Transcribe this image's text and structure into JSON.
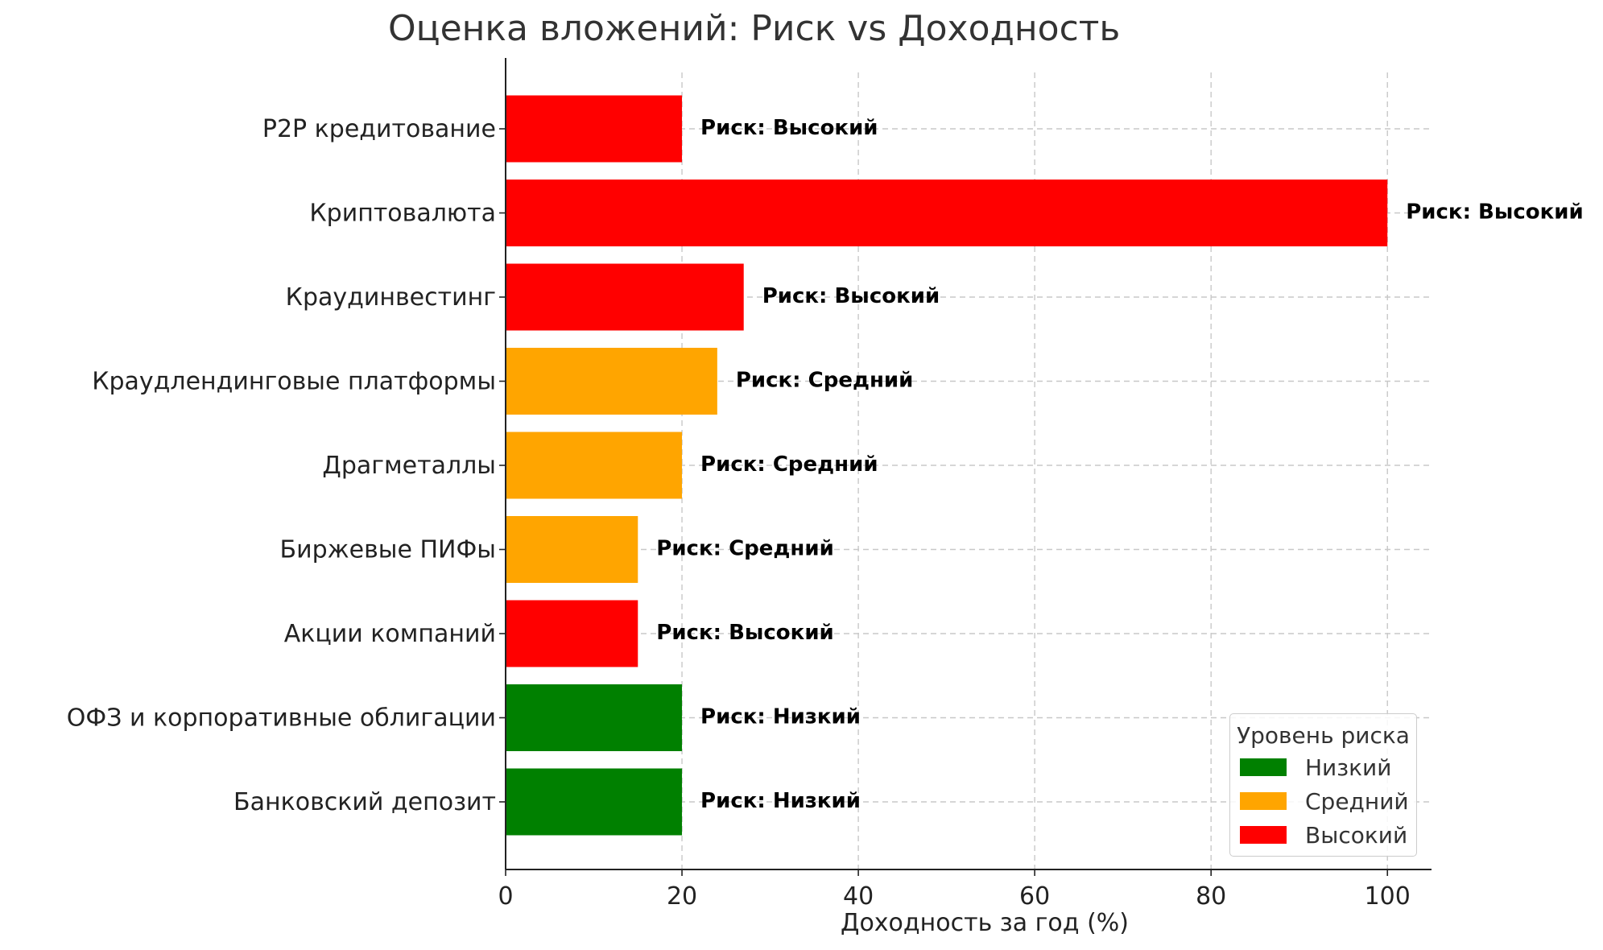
{
  "chart_data": {
    "type": "bar",
    "orientation": "horizontal",
    "title": "Оценка вложений: Риск vs Доходность",
    "xlabel": "Доходность за год (%)",
    "ylabel": "",
    "xlim": [
      0,
      105
    ],
    "xticks": [
      0,
      20,
      40,
      60,
      80,
      100
    ],
    "grid": true,
    "categories": [
      "P2P кредитование",
      "Криптовалюта",
      "Краудинвестинг",
      "Краудлендинговые платформы",
      "Драгметаллы",
      "Биржевые ПИФы",
      "Акции компаний",
      "ОФЗ и корпоративные облигации",
      "Банковский депозит"
    ],
    "values": [
      20,
      100,
      27,
      24,
      20,
      15,
      15,
      20,
      20
    ],
    "risk": [
      "Высокий",
      "Высокий",
      "Высокий",
      "Средний",
      "Средний",
      "Средний",
      "Высокий",
      "Низкий",
      "Низкий"
    ],
    "bar_labels": [
      "Риск: Высокий",
      "Риск: Высокий",
      "Риск: Высокий",
      "Риск: Средний",
      "Риск: Средний",
      "Риск: Средний",
      "Риск: Высокий",
      "Риск: Низкий",
      "Риск: Низкий"
    ],
    "risk_colors": {
      "Низкий": "#008000",
      "Средний": "#FFA500",
      "Высокий": "#FF0000"
    },
    "legend": {
      "title": "Уровень риска",
      "placement": "bottom-right",
      "items": [
        {
          "label": "Низкий",
          "color": "#008000"
        },
        {
          "label": "Средний",
          "color": "#FFA500"
        },
        {
          "label": "Высокий",
          "color": "#FF0000"
        }
      ]
    }
  }
}
